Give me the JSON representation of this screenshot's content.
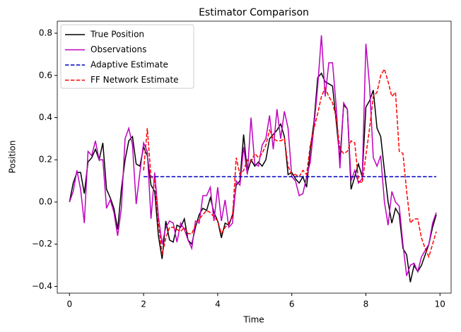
{
  "chart_data": {
    "type": "line",
    "title": "Estimator Comparison",
    "x_label": "Time",
    "y_label": "Position",
    "x": [
      0.0,
      0.1,
      0.2,
      0.3,
      0.4,
      0.5,
      0.6,
      0.7,
      0.8,
      0.9,
      1.0,
      1.1,
      1.2,
      1.3,
      1.4,
      1.5,
      1.6,
      1.7,
      1.8,
      1.9,
      2.0,
      2.1,
      2.2,
      2.3,
      2.4,
      2.5,
      2.6,
      2.7,
      2.8,
      2.9,
      3.0,
      3.1,
      3.2,
      3.3,
      3.4,
      3.5,
      3.6,
      3.7,
      3.8,
      3.9,
      4.0,
      4.1,
      4.2,
      4.3,
      4.4,
      4.5,
      4.6,
      4.7,
      4.8,
      4.9,
      5.0,
      5.1,
      5.2,
      5.3,
      5.4,
      5.5,
      5.6,
      5.7,
      5.8,
      5.9,
      6.0,
      6.1,
      6.2,
      6.3,
      6.4,
      6.5,
      6.6,
      6.7,
      6.8,
      6.9,
      7.0,
      7.1,
      7.2,
      7.3,
      7.4,
      7.5,
      7.6,
      7.7,
      7.8,
      7.9,
      8.0,
      8.1,
      8.2,
      8.3,
      8.4,
      8.5,
      8.6,
      8.7,
      8.8,
      8.9,
      9.0,
      9.1,
      9.2,
      9.3,
      9.4,
      9.5,
      9.6,
      9.7,
      9.8,
      9.9
    ],
    "series": [
      {
        "name": "True Position",
        "color": "#000000",
        "dash": "solid",
        "values": [
          0.0,
          0.09,
          0.14,
          0.14,
          0.04,
          0.19,
          0.21,
          0.25,
          0.2,
          0.28,
          0.06,
          0.02,
          -0.03,
          -0.13,
          0.06,
          0.2,
          0.29,
          0.31,
          0.18,
          0.17,
          0.26,
          0.22,
          0.08,
          0.05,
          -0.16,
          -0.27,
          -0.09,
          -0.18,
          -0.19,
          -0.11,
          -0.12,
          -0.08,
          -0.18,
          -0.2,
          -0.12,
          -0.06,
          -0.03,
          -0.04,
          0.02,
          -0.05,
          -0.09,
          -0.17,
          -0.1,
          -0.11,
          -0.06,
          0.08,
          0.1,
          0.32,
          0.14,
          0.2,
          0.17,
          0.19,
          0.17,
          0.2,
          0.3,
          0.32,
          0.34,
          0.37,
          0.31,
          0.13,
          0.14,
          0.11,
          0.09,
          0.12,
          0.07,
          0.25,
          0.38,
          0.59,
          0.61,
          0.57,
          0.56,
          0.55,
          0.38,
          0.2,
          0.46,
          0.44,
          0.06,
          0.12,
          0.18,
          0.12,
          0.45,
          0.48,
          0.53,
          0.35,
          0.31,
          0.15,
          0.0,
          -0.1,
          -0.03,
          -0.06,
          -0.22,
          -0.25,
          -0.38,
          -0.3,
          -0.33,
          -0.3,
          -0.25,
          -0.2,
          -0.12,
          -0.06
        ]
      },
      {
        "name": "Observations",
        "color": "#bf00bf",
        "dash": "solid",
        "values": [
          0.0,
          0.05,
          0.15,
          0.06,
          -0.1,
          0.24,
          0.22,
          0.29,
          0.2,
          0.2,
          -0.03,
          0.01,
          -0.05,
          -0.16,
          -0.03,
          0.3,
          0.35,
          0.27,
          -0.01,
          0.14,
          0.28,
          0.24,
          -0.08,
          0.14,
          -0.07,
          -0.2,
          -0.12,
          -0.09,
          -0.1,
          -0.19,
          -0.1,
          -0.13,
          -0.18,
          -0.22,
          -0.09,
          -0.1,
          0.03,
          0.03,
          0.07,
          -0.09,
          0.07,
          -0.09,
          0.01,
          -0.12,
          -0.1,
          0.1,
          0.08,
          0.26,
          0.13,
          0.4,
          0.18,
          0.17,
          0.27,
          0.3,
          0.41,
          0.25,
          0.44,
          0.3,
          0.43,
          0.35,
          0.12,
          0.1,
          0.03,
          0.04,
          0.12,
          0.19,
          0.36,
          0.55,
          0.79,
          0.5,
          0.66,
          0.66,
          0.45,
          0.16,
          0.47,
          0.44,
          0.1,
          0.15,
          0.09,
          0.11,
          0.75,
          0.55,
          0.21,
          0.17,
          0.22,
          0.0,
          -0.11,
          0.05,
          0.0,
          -0.02,
          -0.2,
          -0.35,
          -0.3,
          -0.29,
          -0.33,
          -0.26,
          -0.23,
          -0.2,
          -0.1,
          -0.05
        ]
      },
      {
        "name": "Adaptive Estimate",
        "color": "#0000bf",
        "dash": "dashed",
        "values": [
          null,
          null,
          null,
          null,
          null,
          null,
          null,
          null,
          null,
          null,
          null,
          null,
          null,
          null,
          null,
          null,
          null,
          null,
          null,
          null,
          0.12,
          0.12,
          0.12,
          0.12,
          0.12,
          0.12,
          0.12,
          0.12,
          0.12,
          0.12,
          0.12,
          0.12,
          0.12,
          0.12,
          0.12,
          0.12,
          0.12,
          0.12,
          0.12,
          0.12,
          0.12,
          0.12,
          0.12,
          0.12,
          0.12,
          0.12,
          0.12,
          0.12,
          0.12,
          0.12,
          0.12,
          0.12,
          0.12,
          0.12,
          0.12,
          0.12,
          0.12,
          0.12,
          0.12,
          0.12,
          0.12,
          0.12,
          0.12,
          0.12,
          0.12,
          0.12,
          0.12,
          0.12,
          0.12,
          0.12,
          0.12,
          0.12,
          0.12,
          0.12,
          0.12,
          0.12,
          0.12,
          0.12,
          0.12,
          0.12,
          0.12,
          0.12,
          0.12,
          0.12,
          0.12,
          0.12,
          0.12,
          0.12,
          0.12,
          0.12,
          0.12,
          0.12,
          0.12,
          0.12,
          0.12,
          0.12,
          0.12,
          0.12,
          0.12,
          0.12
        ]
      },
      {
        "name": "FF Network Estimate",
        "color": "#ff0000",
        "dash": "dashed",
        "values": [
          null,
          null,
          null,
          null,
          null,
          null,
          null,
          null,
          null,
          null,
          null,
          null,
          null,
          null,
          null,
          null,
          null,
          null,
          null,
          null,
          0.15,
          0.35,
          0.12,
          0.1,
          -0.1,
          -0.25,
          -0.17,
          -0.12,
          -0.12,
          -0.13,
          -0.14,
          -0.12,
          -0.15,
          -0.15,
          -0.11,
          -0.08,
          -0.06,
          -0.04,
          -0.05,
          -0.07,
          -0.09,
          -0.15,
          -0.12,
          -0.1,
          -0.07,
          0.21,
          0.13,
          0.15,
          0.2,
          0.19,
          0.23,
          0.21,
          0.23,
          0.27,
          0.34,
          0.3,
          0.29,
          0.29,
          0.3,
          0.17,
          0.13,
          0.13,
          0.12,
          0.15,
          0.13,
          0.27,
          0.35,
          0.42,
          0.5,
          0.54,
          0.5,
          0.47,
          0.4,
          0.25,
          0.23,
          0.24,
          0.29,
          0.28,
          0.1,
          0.09,
          0.22,
          0.35,
          0.5,
          0.52,
          0.6,
          0.63,
          0.57,
          0.5,
          0.52,
          0.24,
          0.23,
          0.05,
          -0.1,
          -0.08,
          -0.08,
          -0.17,
          -0.22,
          -0.26,
          -0.2,
          -0.14
        ]
      }
    ],
    "xlim": [
      -0.33,
      10.3
    ],
    "ylim": [
      -0.432,
      0.857
    ],
    "xticks": [
      0,
      2,
      4,
      6,
      8,
      10
    ],
    "yticks": [
      {
        "value": -0.4,
        "label": "−0.4"
      },
      {
        "value": -0.2,
        "label": "−0.2"
      },
      {
        "value": 0,
        "label": "0.0"
      },
      0.2,
      0.4,
      0.6,
      0.8
    ],
    "legend": "upper left",
    "grid": false
  }
}
